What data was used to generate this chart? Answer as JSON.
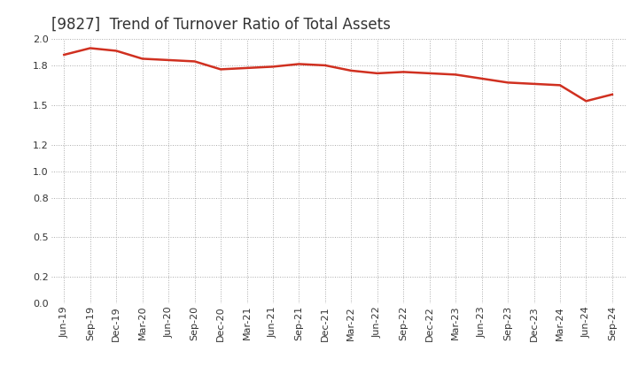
{
  "title": "[9827]  Trend of Turnover Ratio of Total Assets",
  "x_labels": [
    "Jun-19",
    "Sep-19",
    "Dec-19",
    "Mar-20",
    "Jun-20",
    "Sep-20",
    "Dec-20",
    "Mar-21",
    "Jun-21",
    "Sep-21",
    "Dec-21",
    "Mar-22",
    "Jun-22",
    "Sep-22",
    "Dec-22",
    "Mar-23",
    "Jun-23",
    "Sep-23",
    "Dec-23",
    "Mar-24",
    "Jun-24",
    "Sep-24"
  ],
  "y_values": [
    1.88,
    1.93,
    1.91,
    1.85,
    1.84,
    1.83,
    1.77,
    1.78,
    1.79,
    1.81,
    1.8,
    1.76,
    1.74,
    1.75,
    1.74,
    1.73,
    1.7,
    1.67,
    1.66,
    1.65,
    1.53,
    1.58
  ],
  "line_color": "#d03020",
  "line_width": 1.8,
  "ylim": [
    0.0,
    2.0
  ],
  "yticks": [
    0.0,
    0.2,
    0.5,
    0.8,
    1.0,
    1.2,
    1.5,
    1.8,
    2.0
  ],
  "background_color": "#ffffff",
  "grid_color": "#aaaaaa",
  "title_fontsize": 12,
  "tick_fontsize": 8
}
